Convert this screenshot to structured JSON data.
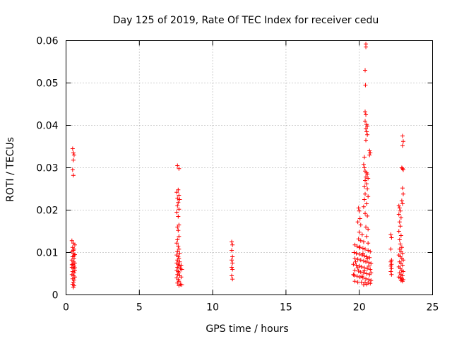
{
  "chart_data": {
    "type": "scatter",
    "title": "Day 125 of 2019, Rate Of TEC Index for receiver cedu",
    "xlabel": "GPS time / hours",
    "ylabel": "ROTI / TECUs",
    "xlim": [
      0,
      25
    ],
    "ylim": [
      0,
      0.06
    ],
    "xticks": [
      0,
      5,
      10,
      15,
      20,
      25
    ],
    "xtick_labels": [
      "0",
      "5",
      "10",
      "15",
      "20",
      "25"
    ],
    "yticks": [
      0,
      0.01,
      0.02,
      0.03,
      0.04,
      0.05,
      0.06
    ],
    "ytick_labels": [
      "0",
      "0.01",
      "0.02",
      "0.03",
      "0.04",
      "0.05",
      "0.06"
    ],
    "grid": true,
    "marker": "+",
    "color": "#ff0000",
    "series": [
      {
        "name": "ROTI",
        "points": [
          [
            0.45,
            0.0345
          ],
          [
            0.5,
            0.0335
          ],
          [
            0.55,
            0.033
          ],
          [
            0.5,
            0.0318
          ],
          [
            0.45,
            0.0295
          ],
          [
            0.5,
            0.0282
          ],
          [
            0.4,
            0.0128
          ],
          [
            0.5,
            0.0122
          ],
          [
            0.6,
            0.0118
          ],
          [
            0.45,
            0.0112
          ],
          [
            0.55,
            0.0108
          ],
          [
            0.4,
            0.0102
          ],
          [
            0.5,
            0.0098
          ],
          [
            0.6,
            0.0095
          ],
          [
            0.45,
            0.009
          ],
          [
            0.55,
            0.0086
          ],
          [
            0.4,
            0.0082
          ],
          [
            0.5,
            0.0078
          ],
          [
            0.6,
            0.0075
          ],
          [
            0.45,
            0.0072
          ],
          [
            0.55,
            0.0068
          ],
          [
            0.4,
            0.0065
          ],
          [
            0.5,
            0.0062
          ],
          [
            0.6,
            0.0058
          ],
          [
            0.45,
            0.0055
          ],
          [
            0.55,
            0.0052
          ],
          [
            0.4,
            0.0048
          ],
          [
            0.5,
            0.0045
          ],
          [
            0.6,
            0.0042
          ],
          [
            0.45,
            0.0038
          ],
          [
            0.55,
            0.0035
          ],
          [
            0.5,
            0.003
          ],
          [
            0.45,
            0.0025
          ],
          [
            0.55,
            0.0022
          ],
          [
            0.5,
            0.0018
          ],
          [
            0.6,
            0.0064
          ],
          [
            0.4,
            0.0071
          ],
          [
            0.5,
            0.0105
          ],
          [
            0.55,
            0.0092
          ],
          [
            7.6,
            0.0305
          ],
          [
            7.7,
            0.0298
          ],
          [
            7.65,
            0.0248
          ],
          [
            7.55,
            0.0242
          ],
          [
            7.7,
            0.0235
          ],
          [
            7.6,
            0.0228
          ],
          [
            7.75,
            0.0225
          ],
          [
            7.65,
            0.0218
          ],
          [
            7.6,
            0.021
          ],
          [
            7.7,
            0.0202
          ],
          [
            7.55,
            0.0195
          ],
          [
            7.65,
            0.0185
          ],
          [
            7.7,
            0.0165
          ],
          [
            7.6,
            0.016
          ],
          [
            7.65,
            0.0152
          ],
          [
            7.7,
            0.0138
          ],
          [
            7.6,
            0.013
          ],
          [
            7.55,
            0.0122
          ],
          [
            7.65,
            0.0115
          ],
          [
            7.7,
            0.0108
          ],
          [
            7.6,
            0.0102
          ],
          [
            7.75,
            0.0098
          ],
          [
            7.55,
            0.0094
          ],
          [
            7.65,
            0.009
          ],
          [
            7.7,
            0.0086
          ],
          [
            7.6,
            0.0082
          ],
          [
            7.75,
            0.0078
          ],
          [
            7.55,
            0.0075
          ],
          [
            7.65,
            0.0072
          ],
          [
            7.7,
            0.0068
          ],
          [
            7.6,
            0.0065
          ],
          [
            7.8,
            0.0062
          ],
          [
            7.55,
            0.0058
          ],
          [
            7.65,
            0.0055
          ],
          [
            7.7,
            0.0052
          ],
          [
            7.6,
            0.0048
          ],
          [
            7.75,
            0.0045
          ],
          [
            7.85,
            0.0042
          ],
          [
            7.55,
            0.004
          ],
          [
            7.65,
            0.0036
          ],
          [
            7.7,
            0.0032
          ],
          [
            7.6,
            0.0028
          ],
          [
            7.8,
            0.0025
          ],
          [
            7.9,
            0.0024
          ],
          [
            7.7,
            0.0022
          ],
          [
            7.85,
            0.007
          ],
          [
            7.9,
            0.006
          ],
          [
            11.3,
            0.0125
          ],
          [
            11.35,
            0.0118
          ],
          [
            11.3,
            0.0105
          ],
          [
            11.35,
            0.009
          ],
          [
            11.3,
            0.0082
          ],
          [
            11.35,
            0.0075
          ],
          [
            11.3,
            0.0065
          ],
          [
            11.35,
            0.006
          ],
          [
            11.3,
            0.0045
          ],
          [
            11.35,
            0.0037
          ],
          [
            20.45,
            0.0592
          ],
          [
            20.45,
            0.0585
          ],
          [
            20.4,
            0.053
          ],
          [
            20.42,
            0.0495
          ],
          [
            20.4,
            0.0432
          ],
          [
            20.45,
            0.0425
          ],
          [
            20.4,
            0.041
          ],
          [
            20.5,
            0.0402
          ],
          [
            20.55,
            0.0398
          ],
          [
            20.45,
            0.0392
          ],
          [
            20.5,
            0.0385
          ],
          [
            20.55,
            0.0378
          ],
          [
            20.45,
            0.0365
          ],
          [
            20.7,
            0.034
          ],
          [
            20.75,
            0.0335
          ],
          [
            20.7,
            0.033
          ],
          [
            20.35,
            0.0325
          ],
          [
            20.3,
            0.0308
          ],
          [
            20.35,
            0.03
          ],
          [
            20.4,
            0.0292
          ],
          [
            20.5,
            0.0288
          ],
          [
            20.55,
            0.0285
          ],
          [
            20.45,
            0.0278
          ],
          [
            20.6,
            0.0275
          ],
          [
            20.4,
            0.027
          ],
          [
            20.5,
            0.0262
          ],
          [
            20.35,
            0.0255
          ],
          [
            20.55,
            0.025
          ],
          [
            20.4,
            0.0238
          ],
          [
            20.6,
            0.0232
          ],
          [
            20.35,
            0.0225
          ],
          [
            20.5,
            0.0215
          ],
          [
            20.3,
            0.0208
          ],
          [
            19.95,
            0.0205
          ],
          [
            20.0,
            0.0198
          ],
          [
            20.4,
            0.0192
          ],
          [
            20.55,
            0.0186
          ],
          [
            20.05,
            0.018
          ],
          [
            19.9,
            0.0172
          ],
          [
            20.1,
            0.0165
          ],
          [
            20.45,
            0.016
          ],
          [
            20.6,
            0.0155
          ],
          [
            20.0,
            0.0148
          ],
          [
            20.2,
            0.0142
          ],
          [
            20.5,
            0.0138
          ],
          [
            19.95,
            0.0132
          ],
          [
            20.1,
            0.0128
          ],
          [
            20.3,
            0.0125
          ],
          [
            20.6,
            0.0122
          ],
          [
            19.7,
            0.0118
          ],
          [
            19.85,
            0.0115
          ],
          [
            20.05,
            0.0112
          ],
          [
            20.25,
            0.011
          ],
          [
            20.4,
            0.0108
          ],
          [
            20.6,
            0.0105
          ],
          [
            20.75,
            0.0102
          ],
          [
            19.65,
            0.01
          ],
          [
            19.8,
            0.0098
          ],
          [
            20.0,
            0.0096
          ],
          [
            20.2,
            0.0094
          ],
          [
            20.35,
            0.0092
          ],
          [
            20.5,
            0.009
          ],
          [
            20.7,
            0.0088
          ],
          [
            19.7,
            0.0086
          ],
          [
            19.9,
            0.0084
          ],
          [
            20.1,
            0.0082
          ],
          [
            20.3,
            0.008
          ],
          [
            20.45,
            0.0078
          ],
          [
            20.65,
            0.0076
          ],
          [
            20.8,
            0.0074
          ],
          [
            19.6,
            0.0072
          ],
          [
            19.8,
            0.007
          ],
          [
            20.0,
            0.0068
          ],
          [
            20.15,
            0.0066
          ],
          [
            20.35,
            0.0064
          ],
          [
            20.55,
            0.0062
          ],
          [
            20.75,
            0.006
          ],
          [
            19.7,
            0.0058
          ],
          [
            19.95,
            0.0056
          ],
          [
            20.1,
            0.0054
          ],
          [
            20.3,
            0.0052
          ],
          [
            20.5,
            0.005
          ],
          [
            20.7,
            0.0048
          ],
          [
            19.65,
            0.0046
          ],
          [
            19.85,
            0.0044
          ],
          [
            20.05,
            0.0042
          ],
          [
            20.25,
            0.004
          ],
          [
            20.45,
            0.0038
          ],
          [
            20.65,
            0.0036
          ],
          [
            20.8,
            0.0034
          ],
          [
            19.7,
            0.0032
          ],
          [
            19.9,
            0.003
          ],
          [
            20.15,
            0.003
          ],
          [
            20.4,
            0.0029
          ],
          [
            20.6,
            0.0028
          ],
          [
            20.75,
            0.0027
          ],
          [
            20.5,
            0.0025
          ],
          [
            20.3,
            0.0024
          ],
          [
            20.0,
            0.0112
          ],
          [
            20.25,
            0.0098
          ],
          [
            20.55,
            0.0085
          ],
          [
            19.75,
            0.0078
          ],
          [
            20.65,
            0.0068
          ],
          [
            19.9,
            0.0064
          ],
          [
            20.35,
            0.0058
          ],
          [
            20.8,
            0.0052
          ],
          [
            19.6,
            0.0048
          ],
          [
            20.2,
            0.0044
          ],
          [
            22.15,
            0.0142
          ],
          [
            22.2,
            0.0135
          ],
          [
            22.15,
            0.0108
          ],
          [
            22.2,
            0.0082
          ],
          [
            22.15,
            0.0078
          ],
          [
            22.2,
            0.0072
          ],
          [
            22.15,
            0.0068
          ],
          [
            22.2,
            0.0062
          ],
          [
            22.15,
            0.0055
          ],
          [
            22.2,
            0.0048
          ],
          [
            22.95,
            0.0375
          ],
          [
            23.0,
            0.0362
          ],
          [
            22.95,
            0.0352
          ],
          [
            22.9,
            0.03
          ],
          [
            22.95,
            0.0298
          ],
          [
            23.0,
            0.0295
          ],
          [
            22.95,
            0.0252
          ],
          [
            23.0,
            0.0238
          ],
          [
            22.9,
            0.0222
          ],
          [
            22.95,
            0.0215
          ],
          [
            22.7,
            0.021
          ],
          [
            22.75,
            0.0205
          ],
          [
            22.8,
            0.0198
          ],
          [
            22.7,
            0.019
          ],
          [
            22.85,
            0.0182
          ],
          [
            22.75,
            0.0172
          ],
          [
            22.8,
            0.0162
          ],
          [
            22.7,
            0.015
          ],
          [
            22.85,
            0.014
          ],
          [
            22.75,
            0.013
          ],
          [
            22.8,
            0.012
          ],
          [
            22.9,
            0.0112
          ],
          [
            22.75,
            0.0108
          ],
          [
            22.85,
            0.0102
          ],
          [
            22.95,
            0.0098
          ],
          [
            22.7,
            0.0094
          ],
          [
            22.8,
            0.009
          ],
          [
            22.9,
            0.0086
          ],
          [
            23.0,
            0.0082
          ],
          [
            22.75,
            0.0078
          ],
          [
            22.85,
            0.0074
          ],
          [
            22.95,
            0.007
          ],
          [
            22.7,
            0.0066
          ],
          [
            22.8,
            0.0062
          ],
          [
            22.9,
            0.0058
          ],
          [
            23.0,
            0.0055
          ],
          [
            22.75,
            0.0052
          ],
          [
            22.85,
            0.0048
          ],
          [
            22.95,
            0.0045
          ],
          [
            22.7,
            0.0042
          ],
          [
            22.8,
            0.004
          ],
          [
            22.9,
            0.0038
          ],
          [
            23.0,
            0.0036
          ],
          [
            22.85,
            0.0034
          ],
          [
            22.95,
            0.0032
          ]
        ]
      }
    ]
  }
}
